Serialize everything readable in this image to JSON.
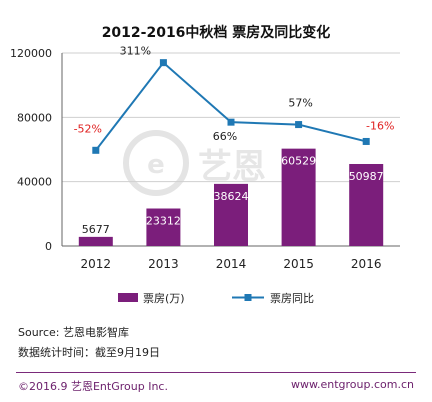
{
  "chart_data": {
    "type": "bar",
    "title": "2012-2016中秋档 票房及同比变化",
    "categories": [
      "2012",
      "2013",
      "2014",
      "2015",
      "2016"
    ],
    "series": [
      {
        "name": "票房(万)",
        "type": "bar",
        "values": [
          5677,
          23312,
          38624,
          60529,
          50987
        ],
        "labels": [
          "5677",
          "23312",
          "38624",
          "60529",
          "50987"
        ]
      },
      {
        "name": "票房同比",
        "type": "line",
        "plotted_values": [
          59500,
          114000,
          77000,
          75500,
          65000
        ],
        "labels": [
          "-52%",
          "311%",
          "66%",
          "57%",
          "-16%"
        ]
      }
    ],
    "y_ticks": [
      "0",
      "40000",
      "80000",
      "120000"
    ],
    "ylim": [
      0,
      120000
    ],
    "grid": true,
    "legend_position": "bottom",
    "colors": {
      "bar": "#7b1e7b",
      "line": "#1f78b4",
      "negative_label": "#e02020",
      "positive_label": "#222222"
    }
  },
  "watermark_text": "艺恩",
  "footer": {
    "source": "Source: 艺恩电影智库",
    "note": "数据统计时间：截至9月19日",
    "copyright": "©2016.9 艺恩EntGroup Inc.",
    "url": "www.entgroup.com.cn"
  }
}
